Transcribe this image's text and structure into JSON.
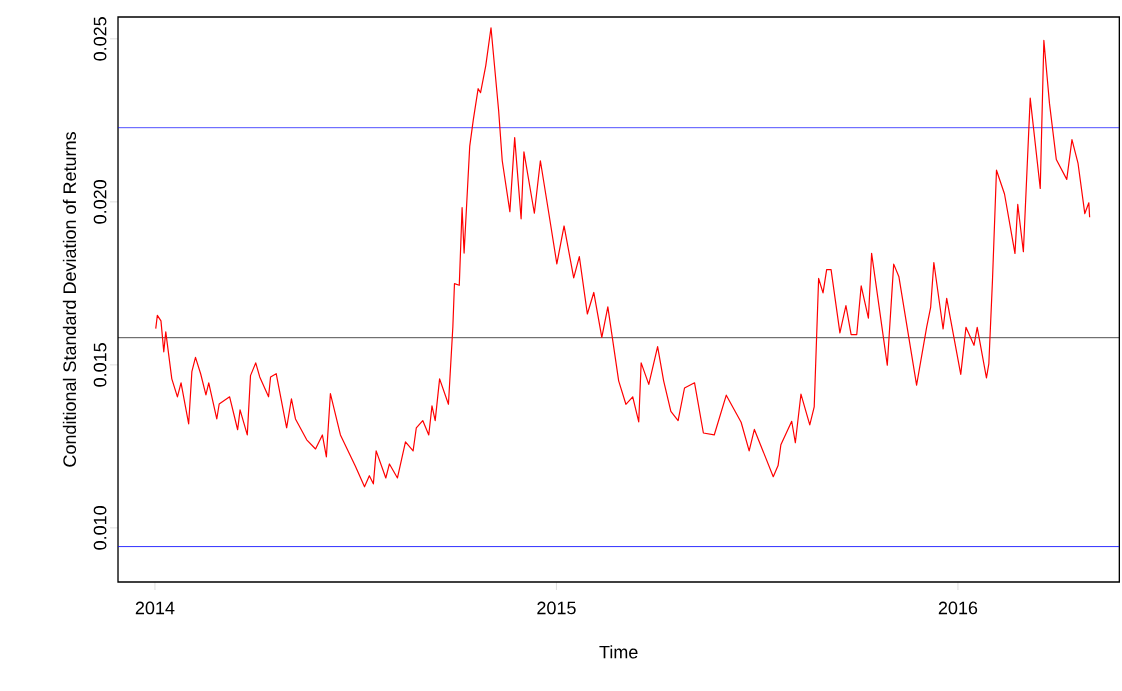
{
  "chart_data": {
    "type": "line",
    "xlabel": "Time",
    "ylabel": "Conditional Standard Deviation of Returns",
    "xlim": [
      2013.908,
      2016.402
    ],
    "ylim": [
      0.00834,
      0.02567
    ],
    "xticks": [
      2014,
      2015,
      2016
    ],
    "yticks": [
      {
        "value": 0.01,
        "label": "0.010"
      },
      0.015,
      {
        "value": 0.02,
        "label": "0.020"
      },
      0.025
    ],
    "x": [
      2014.002,
      2014.006,
      2014.015,
      2014.022,
      2014.027,
      2014.042,
      2014.056,
      2014.065,
      2014.084,
      2014.092,
      2014.101,
      2014.114,
      2014.127,
      2014.134,
      2014.154,
      2014.16,
      2014.186,
      2014.206,
      2014.212,
      2014.23,
      2014.238,
      2014.251,
      2014.261,
      2014.283,
      2014.288,
      2014.302,
      2014.328,
      2014.34,
      2014.35,
      2014.378,
      2014.4,
      2014.417,
      2014.427,
      2014.437,
      2014.462,
      2014.499,
      2014.522,
      2014.534,
      2014.544,
      2014.551,
      2014.575,
      2014.584,
      2014.604,
      2014.624,
      2014.643,
      2014.651,
      2014.667,
      2014.682,
      2014.69,
      2014.698,
      2014.709,
      2014.731,
      2014.742,
      2014.746,
      2014.758,
      2014.765,
      2014.77,
      2014.784,
      2014.793,
      2014.805,
      2014.811,
      2014.824,
      2014.837,
      2014.856,
      2014.865,
      2014.884,
      2014.896,
      2014.912,
      2014.919,
      2014.945,
      2014.96,
      2014.981,
      2015.001,
      2015.019,
      2015.043,
      2015.057,
      2015.077,
      2015.093,
      2015.113,
      2015.128,
      2015.155,
      2015.173,
      2015.19,
      2015.205,
      2015.211,
      2015.23,
      2015.252,
      2015.267,
      2015.285,
      2015.303,
      2015.319,
      2015.344,
      2015.366,
      2015.393,
      2015.423,
      2015.46,
      2015.48,
      2015.493,
      2015.54,
      2015.552,
      2015.559,
      2015.586,
      2015.595,
      2015.609,
      2015.631,
      2015.642,
      2015.653,
      2015.664,
      2015.673,
      2015.684,
      2015.706,
      2015.721,
      2015.734,
      2015.748,
      2015.759,
      2015.777,
      2015.785,
      2015.824,
      2015.84,
      2015.853,
      2015.897,
      2015.922,
      2015.932,
      2015.94,
      2015.963,
      2015.972,
      2016.007,
      2016.02,
      2016.04,
      2016.048,
      2016.071,
      2016.077,
      2016.086,
      2016.096,
      2016.116,
      2016.142,
      2016.149,
      2016.163,
      2016.18,
      2016.205,
      2016.214,
      2016.228,
      2016.245,
      2016.271,
      2016.284,
      2016.299,
      2016.316,
      2016.326,
      2016.328
    ],
    "series": [
      {
        "color": "#ff0000",
        "values": [
          0.01611,
          0.01652,
          0.01635,
          0.0154,
          0.01601,
          0.01457,
          0.01402,
          0.01445,
          0.01319,
          0.01479,
          0.01523,
          0.01472,
          0.01408,
          0.01445,
          0.01334,
          0.0138,
          0.01402,
          0.01301,
          0.01362,
          0.01285,
          0.01467,
          0.01506,
          0.01463,
          0.01402,
          0.01463,
          0.01473,
          0.01307,
          0.01396,
          0.01334,
          0.0127,
          0.01242,
          0.01285,
          0.01218,
          0.01412,
          0.01285,
          0.0119,
          0.01126,
          0.0116,
          0.01135,
          0.01236,
          0.01153,
          0.01196,
          0.01153,
          0.01264,
          0.01236,
          0.01307,
          0.01329,
          0.01285,
          0.01374,
          0.01329,
          0.01457,
          0.01379,
          0.01617,
          0.01749,
          0.01744,
          0.01982,
          0.01843,
          0.0217,
          0.02252,
          0.02347,
          0.02335,
          0.02418,
          0.02534,
          0.0228,
          0.02126,
          0.0197,
          0.02197,
          0.01948,
          0.02153,
          0.01965,
          0.02126,
          0.01965,
          0.0181,
          0.01926,
          0.01767,
          0.01832,
          0.01656,
          0.01722,
          0.01584,
          0.01678,
          0.01451,
          0.01379,
          0.01402,
          0.01325,
          0.01506,
          0.0144,
          0.01556,
          0.01451,
          0.01357,
          0.01329,
          0.01429,
          0.01445,
          0.01291,
          0.01285,
          0.01407,
          0.01324,
          0.01236,
          0.01302,
          0.01157,
          0.01191,
          0.01255,
          0.01327,
          0.01261,
          0.0141,
          0.01316,
          0.01371,
          0.01765,
          0.01721,
          0.01792,
          0.01792,
          0.01598,
          0.01682,
          0.01593,
          0.01593,
          0.01742,
          0.01643,
          0.01842,
          0.01499,
          0.01809,
          0.0177,
          0.01438,
          0.01615,
          0.01676,
          0.01814,
          0.0161,
          0.01704,
          0.01471,
          0.01615,
          0.0156,
          0.01615,
          0.0146,
          0.01504,
          0.01759,
          0.02097,
          0.02024,
          0.01842,
          0.01992,
          0.01847,
          0.02318,
          0.02041,
          0.02495,
          0.02302,
          0.0213,
          0.02069,
          0.02191,
          0.02119,
          0.01964,
          0.01997,
          0.01953
        ]
      }
    ],
    "ref_lines": [
      {
        "axis": "y",
        "value": 0.02227,
        "color": "#0000ff"
      },
      {
        "axis": "y",
        "value": 0.01583,
        "color": "#000000"
      },
      {
        "axis": "y",
        "value": 0.00942,
        "color": "#0000ff"
      }
    ]
  }
}
